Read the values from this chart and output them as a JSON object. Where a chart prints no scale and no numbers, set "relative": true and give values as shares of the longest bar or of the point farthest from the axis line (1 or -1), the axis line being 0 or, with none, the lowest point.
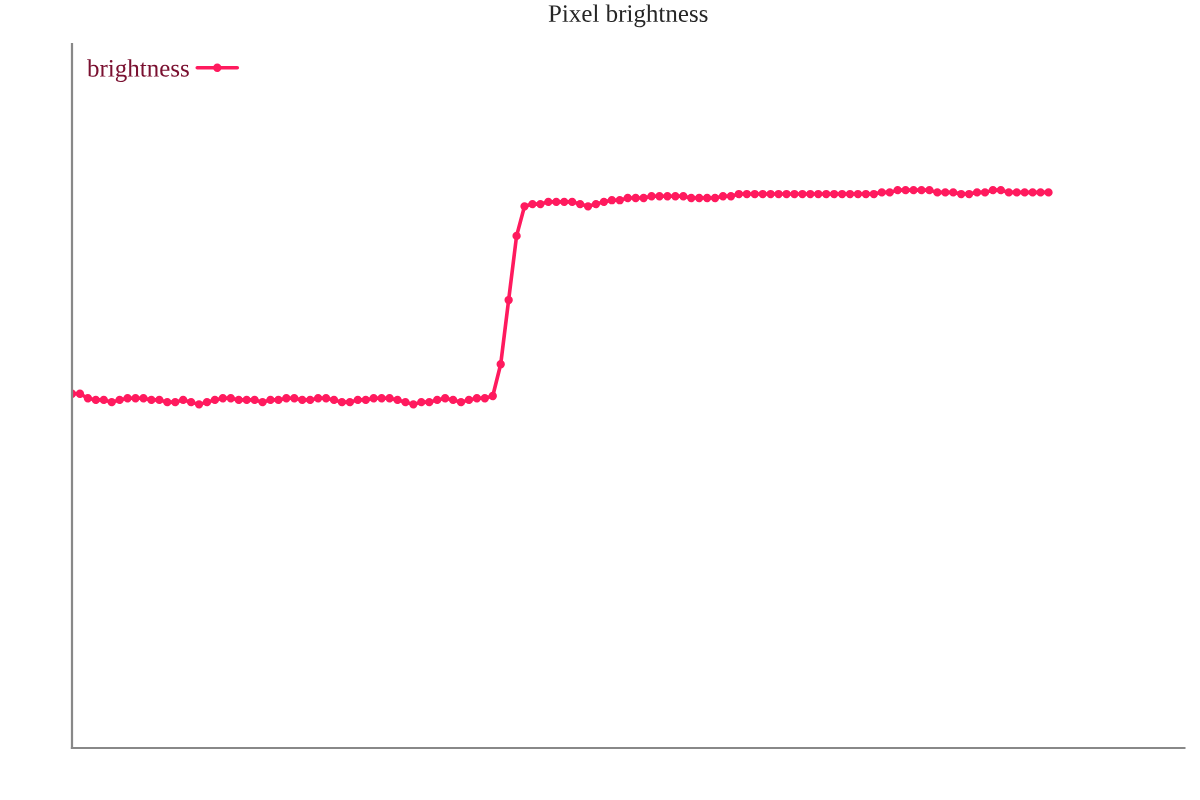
{
  "chart_data": {
    "type": "line",
    "title": "Pixel brightness",
    "relative": true,
    "legend": "top left",
    "marker": "circle",
    "line_style": "solid",
    "grid": false,
    "categories": [
      null,
      null,
      null,
      null,
      null,
      null,
      null,
      null,
      null,
      null,
      null,
      null,
      null,
      null,
      null,
      null,
      null,
      null,
      null,
      null,
      null,
      null,
      null,
      null,
      null,
      null,
      null,
      null,
      null,
      null,
      null,
      null,
      null,
      null,
      null,
      null,
      null,
      null,
      null,
      null,
      null,
      null,
      null,
      null,
      null,
      null,
      null,
      null,
      null,
      null,
      null,
      null,
      null,
      null,
      null,
      null,
      null,
      null,
      null,
      null,
      null,
      null,
      null,
      null,
      null,
      null,
      null,
      null,
      null,
      null,
      null,
      null,
      null,
      null,
      null,
      null,
      null,
      null,
      null,
      null,
      null,
      null,
      null,
      null,
      null,
      null,
      null,
      null,
      null,
      null,
      null,
      null,
      null,
      null,
      null,
      null,
      null,
      null,
      null,
      null,
      null,
      null,
      null,
      null,
      null,
      null,
      null,
      null,
      null,
      null,
      null,
      null,
      null,
      null,
      null,
      null,
      null,
      null,
      null,
      null,
      null,
      null,
      null,
      null
    ],
    "series": [
      {
        "name": "brightness",
        "color": "#ff1a5e",
        "values": [
          0.635,
          0.635,
          0.627,
          0.624,
          0.624,
          0.62,
          0.624,
          0.627,
          0.627,
          0.627,
          0.624,
          0.624,
          0.62,
          0.62,
          0.624,
          0.62,
          0.616,
          0.62,
          0.624,
          0.627,
          0.627,
          0.624,
          0.624,
          0.624,
          0.62,
          0.624,
          0.624,
          0.627,
          0.627,
          0.624,
          0.624,
          0.627,
          0.627,
          0.624,
          0.62,
          0.62,
          0.624,
          0.624,
          0.627,
          0.627,
          0.627,
          0.624,
          0.62,
          0.616,
          0.62,
          0.62,
          0.624,
          0.627,
          0.624,
          0.62,
          0.624,
          0.627,
          0.627,
          0.631,
          0.688,
          0.803,
          0.918,
          0.971,
          0.975,
          0.975,
          0.979,
          0.979,
          0.979,
          0.979,
          0.975,
          0.971,
          0.975,
          0.979,
          0.982,
          0.982,
          0.986,
          0.986,
          0.986,
          0.989,
          0.989,
          0.989,
          0.989,
          0.989,
          0.986,
          0.986,
          0.986,
          0.986,
          0.989,
          0.989,
          0.993,
          0.993,
          0.993,
          0.993,
          0.993,
          0.993,
          0.993,
          0.993,
          0.993,
          0.993,
          0.993,
          0.993,
          0.993,
          0.993,
          0.993,
          0.993,
          0.993,
          0.993,
          0.996,
          0.996,
          1.0,
          1.0,
          1.0,
          1.0,
          1.0,
          0.996,
          0.996,
          0.996,
          0.993,
          0.993,
          0.996,
          0.996,
          1.0,
          1.0,
          0.996,
          0.996,
          0.996,
          0.996,
          0.996,
          0.996
        ]
      }
    ]
  }
}
